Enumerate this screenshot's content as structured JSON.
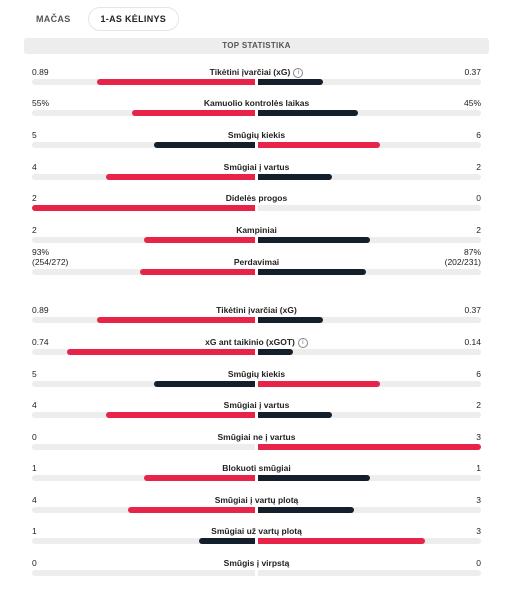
{
  "tabs": [
    {
      "label": "MAČAS",
      "active": false
    },
    {
      "label": "1-AS KĖLINYS",
      "active": true
    }
  ],
  "section_title": "TOP STATISTIKA",
  "colors": {
    "home": "#e8234a",
    "away": "#131f2b",
    "track": "#ededed"
  },
  "stats": [
    {
      "category": "Tikėtini įvarčiai (xG)",
      "home": "0.89",
      "away": "0.37",
      "home_value": 0.89,
      "away_value": 0.37,
      "info_icon": true
    },
    {
      "category": "Kamuolio kontrolės laikas",
      "home": "55%",
      "away": "45%",
      "home_value": 55,
      "away_value": 45
    },
    {
      "category": "Smūgių kiekis",
      "home": "5",
      "away": "6",
      "home_value": 5,
      "away_value": 6
    },
    {
      "category": "Smūgiai į vartus",
      "home": "4",
      "away": "2",
      "home_value": 4,
      "away_value": 2
    },
    {
      "category": "Didelės progos",
      "home": "2",
      "away": "0",
      "home_value": 2,
      "away_value": 0
    },
    {
      "category": "Kampiniai",
      "home": "2",
      "away": "2",
      "home_value": 2,
      "away_value": 2
    },
    {
      "category": "Perdavimai",
      "home": "93%",
      "away": "87%",
      "home_sub": "(254/272)",
      "away_sub": "(202/231)",
      "home_value": 93,
      "away_value": 87
    },
    {
      "category": "Tikėtini įvarčiai (xG)",
      "home": "0.89",
      "away": "0.37",
      "home_value": 0.89,
      "away_value": 0.37
    },
    {
      "category": "xG ant taikinio (xGOT)",
      "home": "0.74",
      "away": "0.14",
      "home_value": 0.74,
      "away_value": 0.14,
      "info_icon": true
    },
    {
      "category": "Smūgių kiekis",
      "home": "5",
      "away": "6",
      "home_value": 5,
      "away_value": 6
    },
    {
      "category": "Smūgiai į vartus",
      "home": "4",
      "away": "2",
      "home_value": 4,
      "away_value": 2
    },
    {
      "category": "Smūgiai ne į vartus",
      "home": "0",
      "away": "3",
      "home_value": 0,
      "away_value": 3
    },
    {
      "category": "Blokuoti smūgiai",
      "home": "1",
      "away": "1",
      "home_value": 1,
      "away_value": 1
    },
    {
      "category": "Smūgiai į vartų plotą",
      "home": "4",
      "away": "3",
      "home_value": 4,
      "away_value": 3
    },
    {
      "category": "Smūgiai už vartų plotą",
      "home": "1",
      "away": "3",
      "home_value": 1,
      "away_value": 3
    },
    {
      "category": "Smūgis į virpstą",
      "home": "0",
      "away": "0",
      "home_value": 0,
      "away_value": 0
    }
  ]
}
